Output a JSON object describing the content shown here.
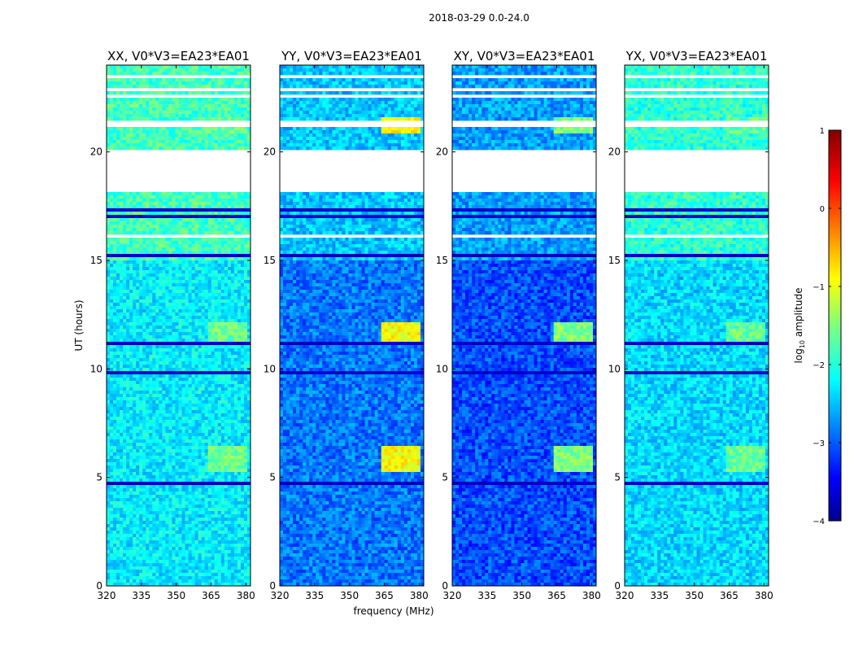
{
  "chart_data": {
    "type": "heatmap",
    "title": "2018-03-29 0.0-24.0",
    "xlabel": "frequency (MHz)",
    "ylabel": "UT (hours)",
    "xlim": [
      320,
      382
    ],
    "ylim": [
      0,
      24
    ],
    "xticks": [
      "320",
      "335",
      "350",
      "365",
      "380"
    ],
    "yticks": [
      "0",
      "5",
      "10",
      "15",
      "20"
    ],
    "panels": [
      {
        "name": "XX",
        "title": "XX, V0*V3=EA23*EA01",
        "base": -2.2,
        "rfi": -1.6
      },
      {
        "name": "YY",
        "title": "YY, V0*V3=EA23*EA01",
        "base": -2.8,
        "rfi": -0.9
      },
      {
        "name": "XY",
        "title": "XY, V0*V3=EA23*EA01",
        "base": -3.0,
        "rfi": -1.5
      },
      {
        "name": "YX",
        "title": "YX, V0*V3=EA23*EA01",
        "base": -2.3,
        "rfi": -1.6
      }
    ],
    "rfi_freq_range_MHz": [
      363,
      381
    ],
    "rfi_bursts_hours": [
      [
        5.2,
        6.5
      ],
      [
        11.2,
        12.2
      ],
      [
        20.8,
        21.6
      ]
    ],
    "gaps_hours": [
      [
        18.1,
        20.0
      ],
      [
        21.55,
        21.65
      ]
    ],
    "colorbar": {
      "label": "log10 amplitude",
      "range": [
        -4,
        1
      ],
      "ticks": [
        "1",
        "0",
        "−1",
        "−2",
        "−3",
        "−4"
      ],
      "colormap": "jet"
    }
  }
}
